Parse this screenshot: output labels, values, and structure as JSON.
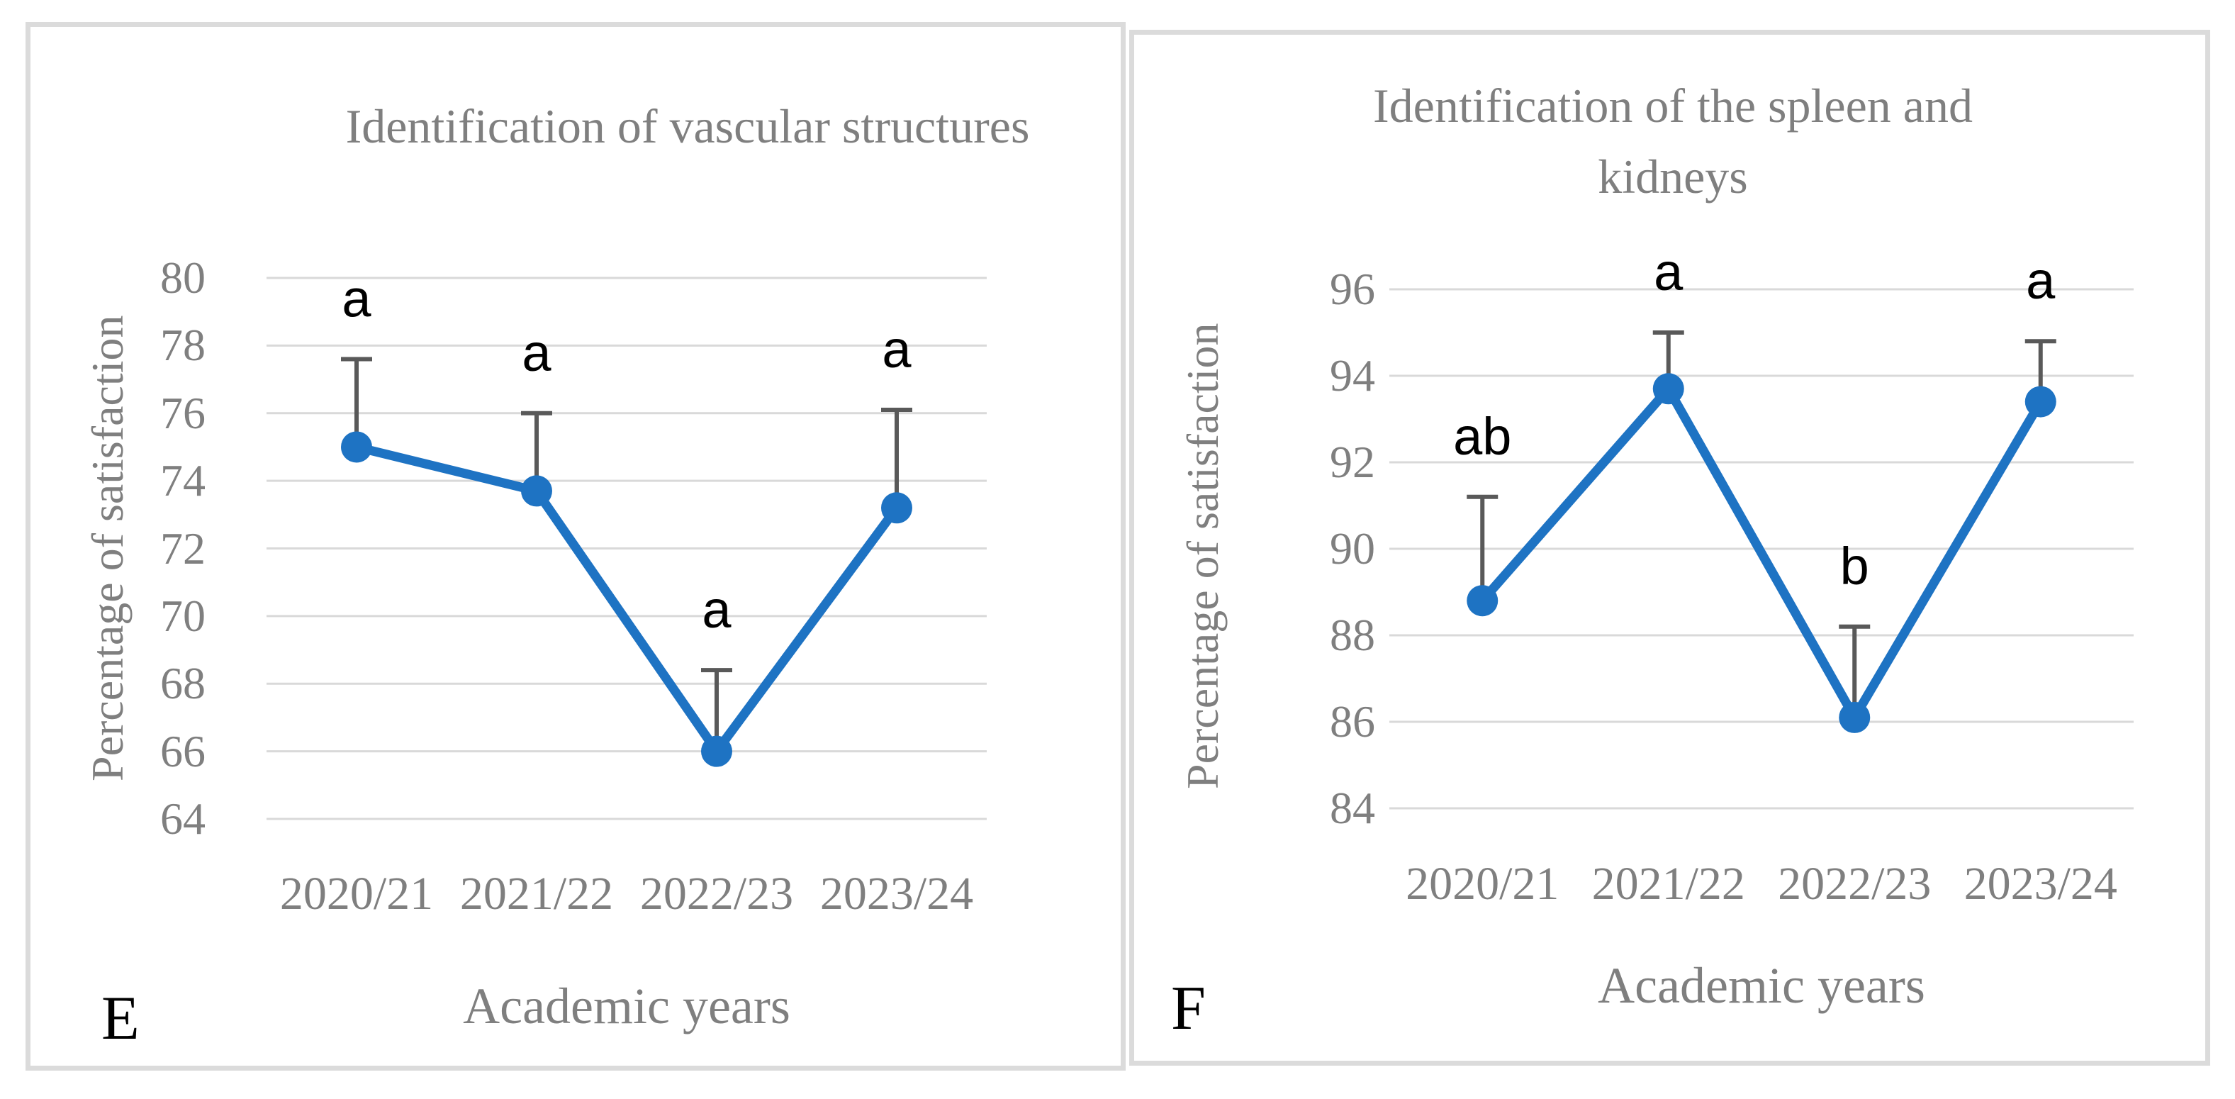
{
  "colors": {
    "line": "#1E73C3",
    "marker": "#1E73C3",
    "error_bar": "#595959",
    "gridline": "#D9D9D9",
    "axis_text": "#7F7F7F",
    "panel_border": "#DBDBDB",
    "sig_letter": "#000000"
  },
  "panels": [
    {
      "panel_letter": "E",
      "title_lines": [
        "Identification of vascular structures"
      ],
      "y_axis_title": "Percentage of satisfaction",
      "x_axis_title": "Academic years"
    },
    {
      "panel_letter": "F",
      "title_lines": [
        "Identification of the spleen and",
        "kidneys"
      ],
      "y_axis_title": "Percentage of satisfaction",
      "x_axis_title": "Academic years"
    }
  ],
  "chart_data": [
    {
      "type": "line",
      "title": "Identification of vascular structures",
      "xlabel": "Academic years",
      "ylabel": "Percentage of satisfaction",
      "categories": [
        "2020/21",
        "2021/22",
        "2022/23",
        "2023/24"
      ],
      "series": [
        {
          "name": "Percentage of satisfaction",
          "values": [
            75.0,
            73.7,
            66.0,
            73.2
          ]
        }
      ],
      "error_upper": [
        2.6,
        2.3,
        2.4,
        2.9
      ],
      "point_labels": [
        "a",
        "a",
        "a",
        "a"
      ],
      "ylim": [
        64,
        80
      ],
      "yticks": [
        80,
        78,
        76,
        74,
        72,
        70,
        68,
        66,
        64
      ],
      "grid": "horizontal",
      "legend": "none"
    },
    {
      "type": "line",
      "title": "Identification of the spleen and kidneys",
      "xlabel": "Academic years",
      "ylabel": "Percentage of satisfaction",
      "categories": [
        "2020/21",
        "2021/22",
        "2022/23",
        "2023/24"
      ],
      "series": [
        {
          "name": "Percentage of satisfaction",
          "values": [
            88.8,
            93.7,
            86.1,
            93.4
          ]
        }
      ],
      "error_upper": [
        2.4,
        1.3,
        2.1,
        1.4
      ],
      "point_labels": [
        "ab",
        "a",
        "b",
        "a"
      ],
      "ylim": [
        84,
        96
      ],
      "yticks": [
        96,
        94,
        92,
        90,
        88,
        86,
        84
      ],
      "grid": "horizontal",
      "legend": "none"
    }
  ]
}
